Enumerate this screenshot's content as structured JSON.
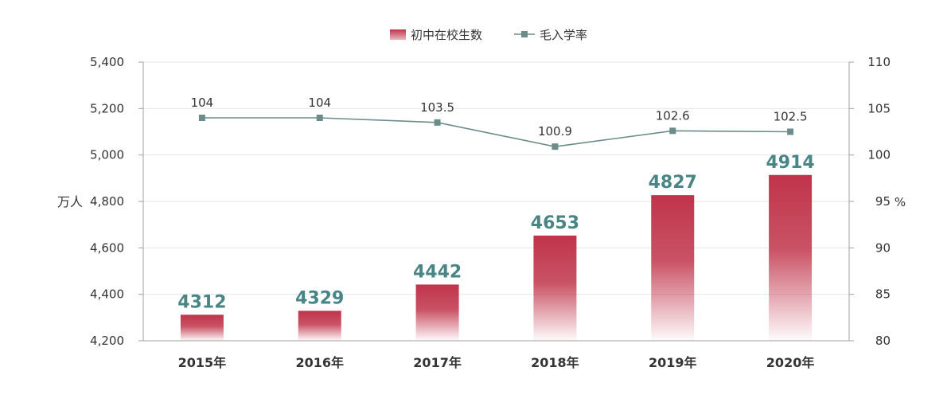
{
  "chart_data": {
    "type": "bar",
    "categories": [
      "2015年",
      "2016年",
      "2017年",
      "2018年",
      "2019年",
      "2020年"
    ],
    "series": [
      {
        "name": "初中在校生数",
        "type": "bar",
        "axis": "left",
        "values": [
          4312,
          4329,
          4442,
          4653,
          4827,
          4914
        ]
      },
      {
        "name": "毛入学率",
        "type": "line",
        "axis": "right",
        "values": [
          104,
          104,
          103.5,
          100.9,
          102.6,
          102.5
        ]
      }
    ],
    "y_left": {
      "label": "万人",
      "ylim": [
        4200,
        5400
      ],
      "ticks": [
        "4,200",
        "4,400",
        "4,600",
        "4,800",
        "5,000",
        "5,200",
        "5,400"
      ]
    },
    "y_right": {
      "label": "%",
      "ylim": [
        80,
        110
      ],
      "ticks": [
        "80",
        "85",
        "90",
        "95",
        "100",
        "105",
        "110"
      ]
    },
    "grid": true,
    "legend_position": "top-center",
    "colors": {
      "bar": "#c0344a",
      "line": "#6b8c8a",
      "bar_label": "#4a8585",
      "axis": "#a0a0a0",
      "grid": "#e6e6e6",
      "text": "#333333"
    }
  }
}
